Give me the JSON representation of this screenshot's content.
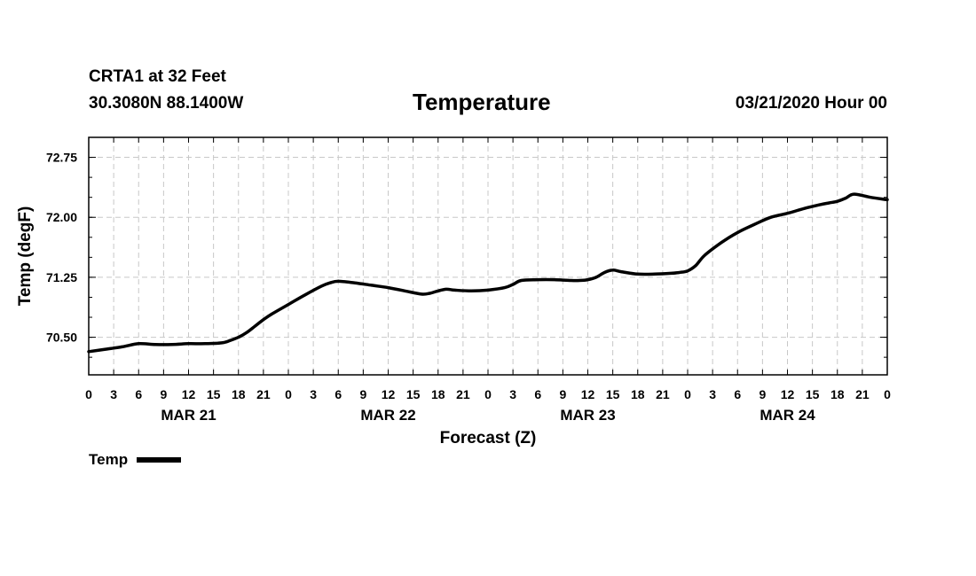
{
  "header": {
    "station": "CRTA1 at 32 Feet",
    "coords": "30.3080N 88.1400W",
    "title": "Temperature",
    "run": "03/21/2020 Hour 00"
  },
  "legend": {
    "label": "Temp"
  },
  "chart_data": {
    "type": "line",
    "title": "Temperature",
    "xlabel": "Forecast (Z)",
    "ylabel": "Temp (degF)",
    "x_range_hours": [
      0,
      96
    ],
    "x_tick_step_hours": 3,
    "ylim": [
      70.03,
      73.0
    ],
    "y_ticks": [
      70.5,
      71.25,
      72.0,
      72.75
    ],
    "y_tick_labels": [
      "70.50",
      "71.25",
      "72.00",
      "72.75"
    ],
    "x_tick_labels": [
      "0",
      "3",
      "6",
      "9",
      "12",
      "15",
      "18",
      "21",
      "0",
      "3",
      "6",
      "9",
      "12",
      "15",
      "18",
      "21",
      "0",
      "3",
      "6",
      "9",
      "12",
      "15",
      "18",
      "21",
      "0",
      "3",
      "6",
      "9",
      "12",
      "15",
      "18",
      "21",
      "0"
    ],
    "date_labels": [
      {
        "text": "MAR 21",
        "hour": 12
      },
      {
        "text": "MAR 22",
        "hour": 36
      },
      {
        "text": "MAR 23",
        "hour": 60
      },
      {
        "text": "MAR 24",
        "hour": 84
      }
    ],
    "grid": true,
    "series": [
      {
        "name": "Temp",
        "color": "#000000",
        "x": [
          0,
          2,
          4,
          6,
          8,
          10,
          12,
          14,
          16,
          17,
          18,
          19,
          20,
          21,
          22,
          24,
          26,
          28,
          29,
          30,
          32,
          34,
          36,
          38,
          40,
          41,
          42,
          43,
          44,
          46,
          48,
          50,
          51,
          52,
          54,
          56,
          58,
          59,
          60,
          61,
          62,
          63,
          64,
          66,
          68,
          70,
          71,
          72,
          73,
          74,
          76,
          78,
          80,
          82,
          84,
          86,
          88,
          89,
          90,
          91,
          92,
          94,
          96
        ],
        "values": [
          70.32,
          70.35,
          70.38,
          70.42,
          70.41,
          70.41,
          70.42,
          70.42,
          70.43,
          70.46,
          70.5,
          70.56,
          70.64,
          70.72,
          70.79,
          70.91,
          71.03,
          71.14,
          71.18,
          71.2,
          71.18,
          71.15,
          71.12,
          71.08,
          71.04,
          71.05,
          71.08,
          71.1,
          71.09,
          71.08,
          71.09,
          71.12,
          71.16,
          71.21,
          71.22,
          71.22,
          71.21,
          71.21,
          71.22,
          71.25,
          71.31,
          71.34,
          71.32,
          71.29,
          71.29,
          71.3,
          71.31,
          71.33,
          71.4,
          71.52,
          71.68,
          71.81,
          71.91,
          72.0,
          72.05,
          72.11,
          72.16,
          72.18,
          72.2,
          72.24,
          72.29,
          72.25,
          72.22
        ]
      }
    ]
  }
}
